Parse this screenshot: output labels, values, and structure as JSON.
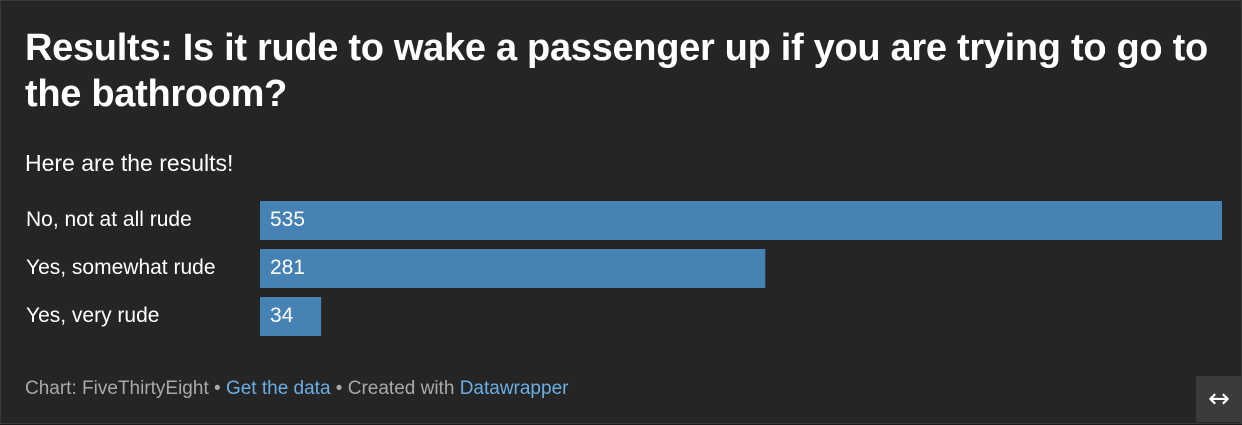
{
  "header": {
    "title": "Results: Is it rude to wake a passenger up if you are trying to go to the bathroom?",
    "subtitle": "Here are the results!"
  },
  "chart_data": {
    "type": "bar",
    "orientation": "horizontal",
    "categories": [
      "No, not at all rude",
      "Yes, somewhat rude",
      "Yes, very rude"
    ],
    "values": [
      535,
      281,
      34
    ],
    "bar_color": "#4682b4",
    "title": "Results: Is it rude to wake a passenger up if you are trying to go to the bathroom?",
    "subtitle": "Here are the results!",
    "xlabel": "",
    "ylabel": "",
    "grid": false,
    "data_labels": "inside-left"
  },
  "footer": {
    "chart_credit": "Chart: FiveThirtyEight",
    "separator1": " • ",
    "get_data_link": "Get the data",
    "separator2": " • Created with ",
    "datawrapper_link": "Datawrapper"
  },
  "controls": {
    "expand_icon": "↔"
  },
  "colors": {
    "background": "#252525",
    "text": "#ffffff",
    "link": "#6aaee6",
    "bar": "#4682b4"
  }
}
